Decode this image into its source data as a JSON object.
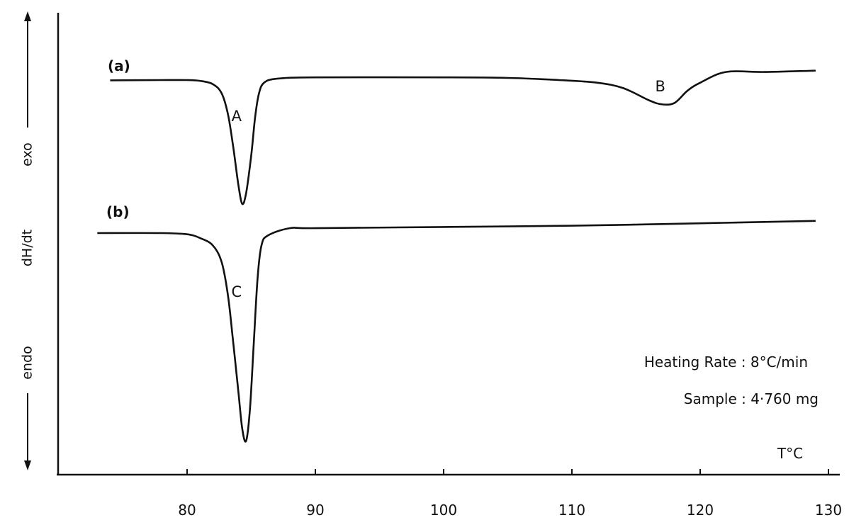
{
  "chart_data": {
    "type": "line",
    "title": "",
    "xlabel": "T°C",
    "ylabel": "dH/dt",
    "y_direction_labels": {
      "top": "exo",
      "bottom": "endo"
    },
    "xlim": [
      72,
      131
    ],
    "ylim": [
      -1.0,
      0.1
    ],
    "x_ticks": [
      80,
      90,
      100,
      110,
      120,
      130
    ],
    "grid": false,
    "legend": "none",
    "series": [
      {
        "name": "(a)",
        "points": [
          [
            74,
            -0.001
          ],
          [
            78,
            0.0
          ],
          [
            80,
            0.0
          ],
          [
            81,
            -0.003
          ],
          [
            82,
            -0.015
          ],
          [
            82.7,
            -0.05
          ],
          [
            83.2,
            -0.13
          ],
          [
            83.6,
            -0.25
          ],
          [
            84.0,
            -0.39
          ],
          [
            84.3,
            -0.46
          ],
          [
            84.6,
            -0.42
          ],
          [
            85.0,
            -0.28
          ],
          [
            85.3,
            -0.14
          ],
          [
            85.6,
            -0.05
          ],
          [
            86.0,
            -0.01
          ],
          [
            87,
            0.005
          ],
          [
            90,
            0.01
          ],
          [
            100,
            0.01
          ],
          [
            105,
            0.008
          ],
          [
            109,
            0.0
          ],
          [
            112,
            -0.01
          ],
          [
            114,
            -0.03
          ],
          [
            116,
            -0.075
          ],
          [
            117,
            -0.09
          ],
          [
            118,
            -0.085
          ],
          [
            119,
            -0.04
          ],
          [
            120,
            -0.01
          ],
          [
            122,
            0.03
          ],
          [
            125,
            0.03
          ],
          [
            129,
            0.035
          ]
        ]
      },
      {
        "name": "(b)",
        "points": [
          [
            73,
            0.0
          ],
          [
            78,
            0.0
          ],
          [
            80,
            -0.005
          ],
          [
            81,
            -0.02
          ],
          [
            82,
            -0.05
          ],
          [
            82.7,
            -0.12
          ],
          [
            83.2,
            -0.26
          ],
          [
            83.6,
            -0.45
          ],
          [
            84.0,
            -0.65
          ],
          [
            84.3,
            -0.8
          ],
          [
            84.6,
            -0.85
          ],
          [
            84.9,
            -0.72
          ],
          [
            85.2,
            -0.45
          ],
          [
            85.5,
            -0.18
          ],
          [
            85.8,
            -0.05
          ],
          [
            86.3,
            -0.01
          ],
          [
            88,
            0.02
          ],
          [
            90,
            0.02
          ],
          [
            100,
            0.025
          ],
          [
            110,
            0.03
          ],
          [
            120,
            0.04
          ],
          [
            129,
            0.05
          ]
        ]
      }
    ],
    "annotations": [
      {
        "series": "(a)",
        "label": "A",
        "x": 84.3
      },
      {
        "series": "(a)",
        "label": "B",
        "x": 117
      },
      {
        "series": "(b)",
        "label": "C",
        "x": 84.3
      }
    ],
    "notes": {
      "heating_rate": "Heating Rate : 8°C/min",
      "sample": "Sample : 4·760 mg"
    }
  }
}
